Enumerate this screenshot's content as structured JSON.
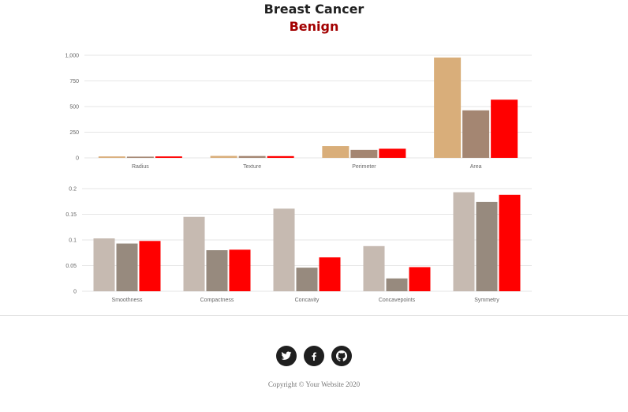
{
  "header": {
    "title": "Breast Cancer",
    "subtitle": "Benign"
  },
  "chart_data": [
    {
      "type": "bar",
      "categories": [
        "Radius",
        "Texture",
        "Perimeter",
        "Area"
      ],
      "series": [
        {
          "values": [
            14,
            19,
            115,
            978
          ],
          "color": "#d9ae7a"
        },
        {
          "values": [
            12,
            18,
            78,
            463
          ],
          "color": "#a48672"
        },
        {
          "values": [
            14,
            17,
            89,
            567
          ],
          "color": "#ff0000"
        }
      ],
      "ylim": [
        0,
        1000
      ],
      "yticks": [
        "0",
        "250",
        "500",
        "750",
        "1,000"
      ],
      "grid": true
    },
    {
      "type": "bar",
      "categories": [
        "Smoothness",
        "Compactness",
        "Concavity",
        "Concavepoints",
        "Symmetry"
      ],
      "series": [
        {
          "values": [
            0.103,
            0.145,
            0.161,
            0.088,
            0.193
          ],
          "color": "#c6bab1"
        },
        {
          "values": [
            0.093,
            0.08,
            0.046,
            0.025,
            0.174
          ],
          "color": "#978a7e"
        },
        {
          "values": [
            0.098,
            0.081,
            0.066,
            0.047,
            0.188
          ],
          "color": "#ff0000"
        }
      ],
      "ylim": [
        0,
        0.2
      ],
      "yticks": [
        "0",
        "0.05",
        "0.1",
        "0.15",
        "0.2"
      ],
      "grid": true
    }
  ],
  "footer": {
    "icons": [
      "twitter-icon",
      "facebook-icon",
      "github-icon"
    ],
    "copyright": "Copyright © Your Website 2020"
  }
}
